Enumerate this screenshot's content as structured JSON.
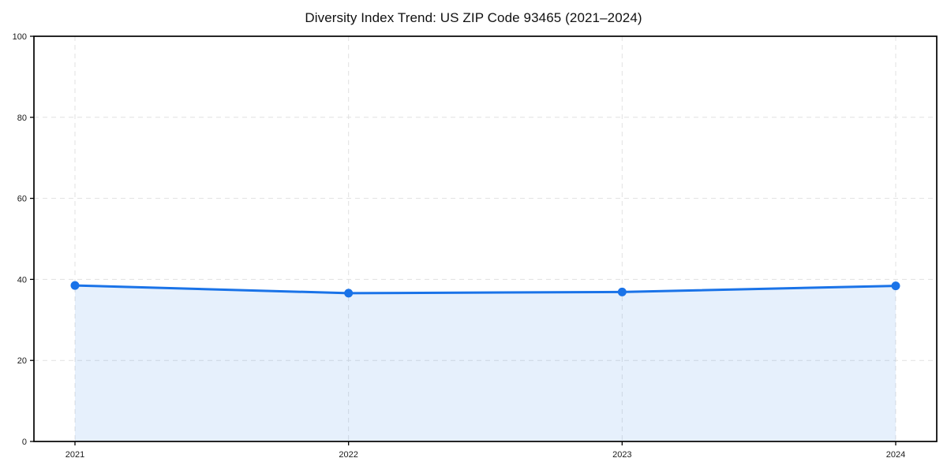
{
  "title": "Diversity Index Trend: US ZIP Code 93465 (2021–2024)",
  "chart_data": {
    "type": "line",
    "title": "Diversity Index Trend: US ZIP Code 93465 (2021–2024)",
    "x": [
      "2021",
      "2022",
      "2023",
      "2024"
    ],
    "series": [
      {
        "name": "Diversity Index",
        "values": [
          38.5,
          36.6,
          36.9,
          38.4
        ]
      }
    ],
    "xlabel": "",
    "ylabel": "",
    "ylim": [
      0,
      100
    ],
    "yticks": [
      0,
      20,
      40,
      60,
      80,
      100
    ],
    "grid": "dashed-both-axes",
    "legend": "none",
    "marker": "circle",
    "line_color": "#1a73e8",
    "fill_color": "rgba(26,115,232,0.11)",
    "frame_color": "#000000",
    "gridline_color": "#e1e1e1",
    "tick_label_color": "#1a1a1a"
  }
}
